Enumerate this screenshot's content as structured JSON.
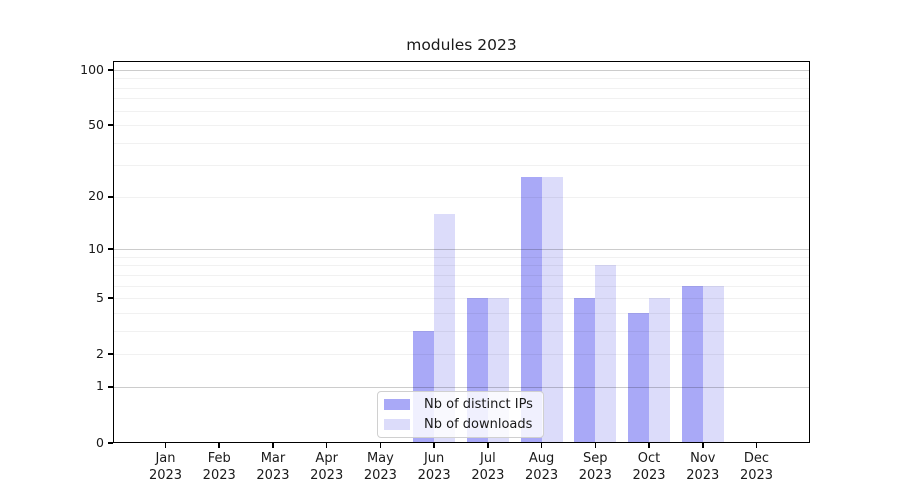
{
  "chart_data": {
    "type": "bar",
    "title": "modules 2023",
    "categories": [
      "Jan 2023",
      "Feb 2023",
      "Mar 2023",
      "Apr 2023",
      "May 2023",
      "Jun 2023",
      "Jul 2023",
      "Aug 2023",
      "Sep 2023",
      "Oct 2023",
      "Nov 2023",
      "Dec 2023"
    ],
    "series": [
      {
        "name": "Nb of distinct IPs",
        "color": "#a9a9f7",
        "values": [
          0,
          0,
          0,
          0,
          0,
          3,
          5,
          26,
          5,
          4,
          6,
          0
        ]
      },
      {
        "name": "Nb of downloads",
        "color": "#dcdcfa",
        "values": [
          0,
          0,
          0,
          0,
          0,
          16,
          5,
          26,
          8,
          5,
          6,
          0
        ]
      }
    ],
    "xlabel": "",
    "ylabel": "",
    "y_axis": {
      "scale": "symlog",
      "ticks": [
        100,
        50,
        20,
        10,
        5,
        2,
        1,
        0
      ],
      "range": [
        0,
        114
      ],
      "gridlines_major": [
        1,
        10,
        100
      ],
      "gridlines_minor": [
        2,
        3,
        4,
        5,
        6,
        7,
        8,
        9,
        20,
        30,
        40,
        50,
        60,
        70,
        80,
        90
      ],
      "grid": "on"
    },
    "legend": {
      "position": "inside-bottom-center",
      "border_color": "#d0d0d0"
    },
    "colors": {
      "spine": "#000000",
      "major_grid": "#cdcdcd",
      "minor_grid": "#f1f1f1",
      "text": "#1a1a1a"
    }
  }
}
